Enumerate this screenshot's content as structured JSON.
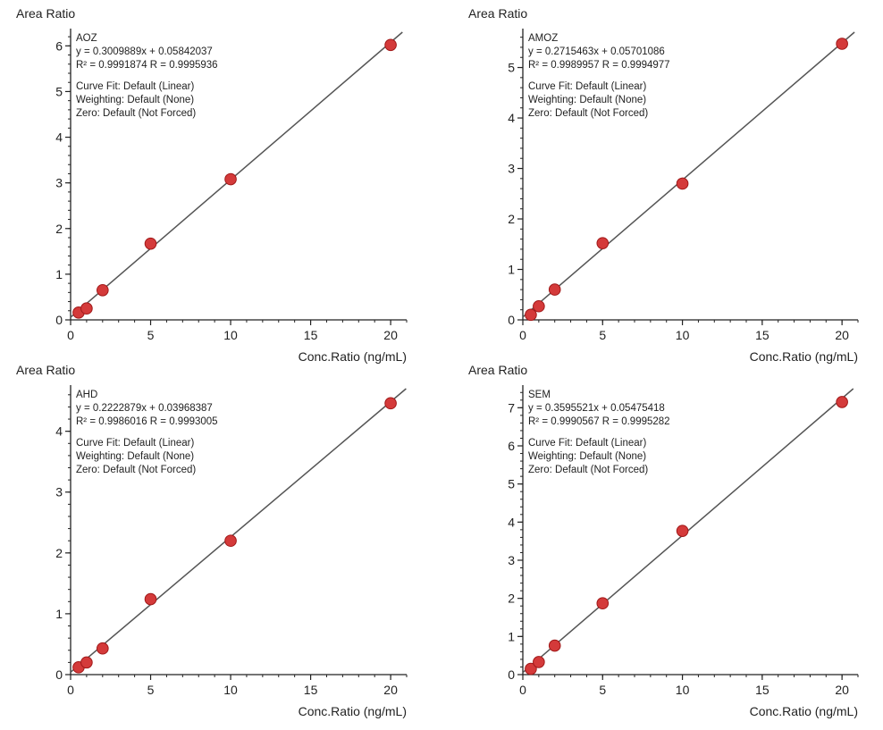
{
  "colors": {
    "point": "#d43a3a",
    "line": "#555555",
    "axis": "#222222"
  },
  "chart_data": [
    {
      "type": "scatter",
      "compound": "AOZ",
      "equation": "y = 0.3009889x + 0.05842037",
      "r_stats": "R² = 0.9991874    R = 0.9995936",
      "curve_fit": "Curve Fit: Default (Linear)",
      "weighting": "Weighting: Default (None)",
      "zero": "Zero: Default (Not Forced)",
      "slope": 0.3009889,
      "intercept": 0.05842037,
      "ylabel": "Area Ratio",
      "xlabel": "Conc.Ratio (ng/mL)",
      "xlim": [
        0,
        21
      ],
      "ylim": [
        0,
        6.3
      ],
      "xticks": [
        0,
        5,
        10,
        15,
        20
      ],
      "yticks": [
        0,
        1,
        2,
        3,
        4,
        5,
        6
      ],
      "x": [
        0.5,
        1,
        2,
        5,
        10,
        20
      ],
      "y": [
        0.16,
        0.25,
        0.65,
        1.67,
        3.08,
        6.02
      ]
    },
    {
      "type": "scatter",
      "compound": "AMOZ",
      "equation": "y = 0.2715463x + 0.05701086",
      "r_stats": "R² = 0.9989957    R = 0.9994977",
      "curve_fit": "Curve Fit: Default (Linear)",
      "weighting": "Weighting: Default (None)",
      "zero": "Zero: Default (Not Forced)",
      "slope": 0.2715463,
      "intercept": 0.05701086,
      "ylabel": "Area Ratio",
      "xlabel": "Conc.Ratio (ng/mL)",
      "xlim": [
        0,
        21
      ],
      "ylim": [
        0,
        5.7
      ],
      "xticks": [
        0,
        5,
        10,
        15,
        20
      ],
      "yticks": [
        0,
        1,
        2,
        3,
        4,
        5
      ],
      "x": [
        0.5,
        1,
        2,
        5,
        10,
        20
      ],
      "y": [
        0.1,
        0.27,
        0.6,
        1.52,
        2.7,
        5.47
      ]
    },
    {
      "type": "scatter",
      "compound": "AHD",
      "equation": "y = 0.2222879x + 0.03968387",
      "r_stats": "R² = 0.9986016    R = 0.9993005",
      "curve_fit": "Curve Fit: Default (Linear)",
      "weighting": "Weighting: Default (None)",
      "zero": "Zero: Default (Not Forced)",
      "slope": 0.2222879,
      "intercept": 0.03968387,
      "ylabel": "Area Ratio",
      "xlabel": "Conc.Ratio (ng/mL)",
      "xlim": [
        0,
        21
      ],
      "ylim": [
        0,
        4.7
      ],
      "xticks": [
        0,
        5,
        10,
        15,
        20
      ],
      "yticks": [
        0,
        1,
        2,
        3,
        4
      ],
      "x": [
        0.5,
        1,
        2,
        5,
        10,
        20
      ],
      "y": [
        0.12,
        0.2,
        0.43,
        1.24,
        2.2,
        4.46
      ]
    },
    {
      "type": "scatter",
      "compound": "SEM",
      "equation": "y = 0.3595521x + 0.05475418",
      "r_stats": "R² = 0.9990567    R = 0.9995282",
      "curve_fit": "Curve Fit: Default (Linear)",
      "weighting": "Weighting: Default (None)",
      "zero": "Zero: Default (Not Forced)",
      "slope": 0.3595521,
      "intercept": 0.05475418,
      "ylabel": "Area Ratio",
      "xlabel": "Conc.Ratio (ng/mL)",
      "xlim": [
        0,
        21
      ],
      "ylim": [
        0,
        7.5
      ],
      "xticks": [
        0,
        5,
        10,
        15,
        20
      ],
      "yticks": [
        0,
        1,
        2,
        3,
        4,
        5,
        6,
        7
      ],
      "x": [
        0.5,
        1,
        2,
        5,
        10,
        20
      ],
      "y": [
        0.15,
        0.33,
        0.76,
        1.87,
        3.77,
        7.15
      ]
    }
  ]
}
